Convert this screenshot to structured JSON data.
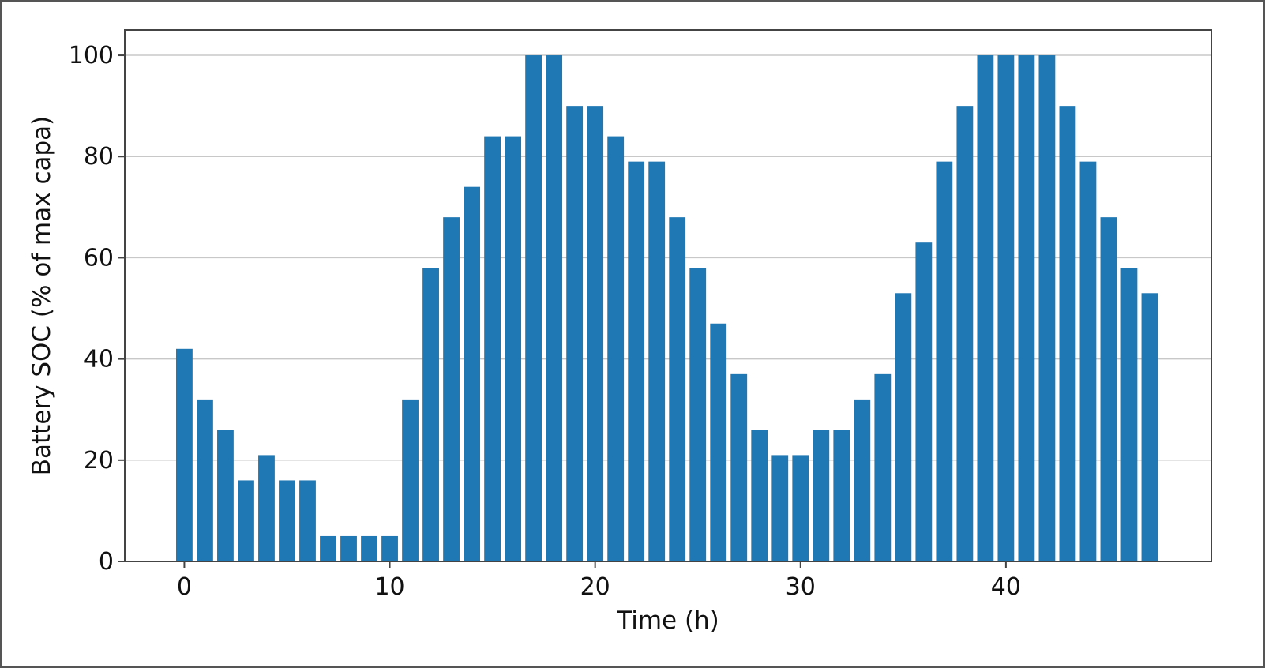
{
  "chart_data": {
    "type": "bar",
    "title": "",
    "xlabel": "Time (h)",
    "ylabel": "Battery SOC (% of max capa)",
    "xlim": [
      -2.9,
      50
    ],
    "ylim": [
      0,
      105
    ],
    "xticks": [
      0,
      10,
      20,
      30,
      40
    ],
    "yticks": [
      0,
      20,
      40,
      60,
      80,
      100
    ],
    "grid": "horizontal",
    "legend": "none",
    "bar_color": "#1f77b4",
    "x": [
      0,
      1,
      2,
      3,
      4,
      5,
      6,
      7,
      8,
      9,
      10,
      11,
      12,
      13,
      14,
      15,
      16,
      17,
      18,
      19,
      20,
      21,
      22,
      23,
      24,
      25,
      26,
      27,
      28,
      29,
      30,
      31,
      32,
      33,
      34,
      35,
      36,
      37,
      38,
      39,
      40,
      41,
      42,
      43,
      44,
      45,
      46,
      47
    ],
    "values": [
      42,
      32,
      26,
      16,
      21,
      16,
      16,
      5,
      5,
      5,
      5,
      32,
      58,
      68,
      74,
      84,
      84,
      100,
      100,
      90,
      90,
      84,
      79,
      79,
      68,
      58,
      47,
      37,
      26,
      21,
      21,
      26,
      26,
      32,
      37,
      53,
      63,
      79,
      90,
      100,
      100,
      100,
      100,
      90,
      79,
      68,
      58,
      53
    ]
  }
}
